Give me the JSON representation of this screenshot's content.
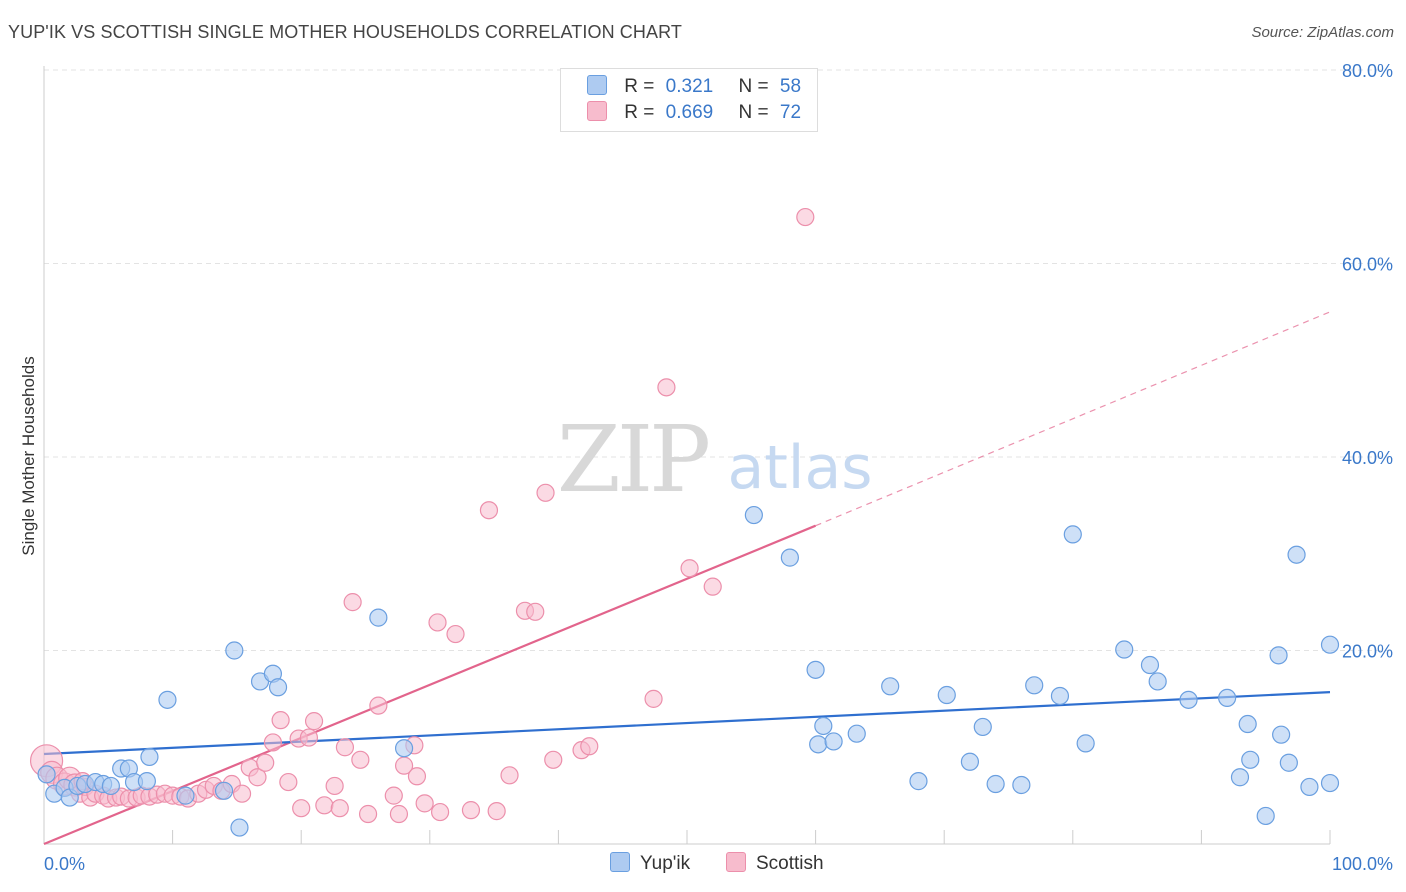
{
  "title": "YUP'IK VS SCOTTISH SINGLE MOTHER HOUSEHOLDS CORRELATION CHART",
  "source": "Source: ZipAtlas.com",
  "watermark": {
    "zip": "ZIP",
    "atlas": "atlas"
  },
  "legend": {
    "r_label": "R =",
    "n_label": "N =",
    "rows": [
      {
        "r": "0.321",
        "n": "58"
      },
      {
        "r": "0.669",
        "n": "72"
      }
    ]
  },
  "colors": {
    "blue_fill": "#aecbf1",
    "blue_stroke": "#6a9fe0",
    "blue_line": "#2f6fcf",
    "pink_fill": "#f7bccd",
    "pink_stroke": "#ec8fab",
    "pink_line": "#e2648c",
    "tick_label": "#3a78c9"
  },
  "chart_data": {
    "type": "scatter",
    "title": "YUP'IK VS SCOTTISH SINGLE MOTHER HOUSEHOLDS CORRELATION CHART",
    "xlabel": "",
    "ylabel": "Single Mother Households",
    "xlim": [
      0,
      100
    ],
    "ylim": [
      0,
      80
    ],
    "x_tick_labels": [
      "0.0%",
      "100.0%"
    ],
    "y_ticks": [
      20,
      40,
      60,
      80
    ],
    "y_tick_labels": [
      "20.0%",
      "40.0%",
      "60.0%",
      "80.0%"
    ],
    "grid": true,
    "legend_position": "top-center",
    "series": [
      {
        "name": "Yup'ik",
        "color": "#6a9fe0",
        "r": 0.321,
        "n": 58,
        "trend": {
          "x": [
            0,
            100
          ],
          "y": [
            9.3,
            15.7
          ]
        },
        "points": [
          [
            0.2,
            7.2
          ],
          [
            0.8,
            5.2
          ],
          [
            1.6,
            5.8
          ],
          [
            2.0,
            4.8
          ],
          [
            2.6,
            6.0
          ],
          [
            3.2,
            6.2
          ],
          [
            4.0,
            6.4
          ],
          [
            4.6,
            6.2
          ],
          [
            5.2,
            6.0
          ],
          [
            6.0,
            7.8
          ],
          [
            6.6,
            7.8
          ],
          [
            7.0,
            6.4
          ],
          [
            8.0,
            6.5
          ],
          [
            8.2,
            9.0
          ],
          [
            9.6,
            14.9
          ],
          [
            11.0,
            5.0
          ],
          [
            14.0,
            5.5
          ],
          [
            14.8,
            20.0
          ],
          [
            15.2,
            1.7
          ],
          [
            16.8,
            16.8
          ],
          [
            17.8,
            17.6
          ],
          [
            18.2,
            16.2
          ],
          [
            26.0,
            23.4
          ],
          [
            28.0,
            9.9
          ],
          [
            55.2,
            34.0
          ],
          [
            58.0,
            29.6
          ],
          [
            60.0,
            18.0
          ],
          [
            60.2,
            10.3
          ],
          [
            60.6,
            12.2
          ],
          [
            61.4,
            10.6
          ],
          [
            63.2,
            11.4
          ],
          [
            65.8,
            16.3
          ],
          [
            68.0,
            6.5
          ],
          [
            70.2,
            15.4
          ],
          [
            72.0,
            8.5
          ],
          [
            73.0,
            12.1
          ],
          [
            74.0,
            6.2
          ],
          [
            76.0,
            6.1
          ],
          [
            77.0,
            16.4
          ],
          [
            79.0,
            15.3
          ],
          [
            80.0,
            32.0
          ],
          [
            81.0,
            10.4
          ],
          [
            84.0,
            20.1
          ],
          [
            86.0,
            18.5
          ],
          [
            86.6,
            16.8
          ],
          [
            89.0,
            14.9
          ],
          [
            92.0,
            15.1
          ],
          [
            93.0,
            6.9
          ],
          [
            93.6,
            12.4
          ],
          [
            93.8,
            8.7
          ],
          [
            95.0,
            2.9
          ],
          [
            96.0,
            19.5
          ],
          [
            96.2,
            11.3
          ],
          [
            96.8,
            8.4
          ],
          [
            97.4,
            29.9
          ],
          [
            98.4,
            5.9
          ],
          [
            100.0,
            20.6
          ],
          [
            100.0,
            6.3
          ]
        ]
      },
      {
        "name": "Scottish",
        "color": "#ec8fab",
        "r": 0.669,
        "n": 72,
        "trend": {
          "x": [
            0,
            60
          ],
          "y": [
            0,
            32.9
          ]
        },
        "trend_dashed": {
          "x": [
            60,
            100
          ],
          "y": [
            32.9,
            55.0
          ]
        },
        "points": [
          [
            0.2,
            8.6
          ],
          [
            0.6,
            7.4
          ],
          [
            1.0,
            6.8
          ],
          [
            1.6,
            6.2
          ],
          [
            2.0,
            6.8
          ],
          [
            2.4,
            6.1
          ],
          [
            2.8,
            5.2
          ],
          [
            3.2,
            5.9
          ],
          [
            3.6,
            4.8
          ],
          [
            4.0,
            5.2
          ],
          [
            4.6,
            5.0
          ],
          [
            5.0,
            4.7
          ],
          [
            5.6,
            4.8
          ],
          [
            6.0,
            4.9
          ],
          [
            6.6,
            4.7
          ],
          [
            7.2,
            4.8
          ],
          [
            7.6,
            5.0
          ],
          [
            8.2,
            4.9
          ],
          [
            8.8,
            5.1
          ],
          [
            9.4,
            5.2
          ],
          [
            10.0,
            5.0
          ],
          [
            10.6,
            4.9
          ],
          [
            11.2,
            4.7
          ],
          [
            12.0,
            5.2
          ],
          [
            12.6,
            5.6
          ],
          [
            13.2,
            6.0
          ],
          [
            13.8,
            5.5
          ],
          [
            14.6,
            6.2
          ],
          [
            15.4,
            5.2
          ],
          [
            16.0,
            7.9
          ],
          [
            16.6,
            6.9
          ],
          [
            17.2,
            8.4
          ],
          [
            17.8,
            10.5
          ],
          [
            18.4,
            12.8
          ],
          [
            19.0,
            6.4
          ],
          [
            19.8,
            10.9
          ],
          [
            20.0,
            3.7
          ],
          [
            20.6,
            11.0
          ],
          [
            21.0,
            12.7
          ],
          [
            21.8,
            4.0
          ],
          [
            22.6,
            6.0
          ],
          [
            23.0,
            3.7
          ],
          [
            23.4,
            10.0
          ],
          [
            24.0,
            25.0
          ],
          [
            24.6,
            8.7
          ],
          [
            25.2,
            3.1
          ],
          [
            26.0,
            14.3
          ],
          [
            27.2,
            5.0
          ],
          [
            27.6,
            3.1
          ],
          [
            28.0,
            8.1
          ],
          [
            28.8,
            10.2
          ],
          [
            29.0,
            7.0
          ],
          [
            29.6,
            4.2
          ],
          [
            30.6,
            22.9
          ],
          [
            30.8,
            3.3
          ],
          [
            32.0,
            21.7
          ],
          [
            33.2,
            3.5
          ],
          [
            34.6,
            34.5
          ],
          [
            35.2,
            3.4
          ],
          [
            36.2,
            7.1
          ],
          [
            37.4,
            24.1
          ],
          [
            38.2,
            24.0
          ],
          [
            39.0,
            36.3
          ],
          [
            39.6,
            8.7
          ],
          [
            41.8,
            9.7
          ],
          [
            42.4,
            10.1
          ],
          [
            47.4,
            15.0
          ],
          [
            48.4,
            47.2
          ],
          [
            50.2,
            28.5
          ],
          [
            52.0,
            26.6
          ],
          [
            59.2,
            64.8
          ],
          [
            3.0,
            6.5
          ]
        ]
      }
    ]
  },
  "bottom_legend": [
    {
      "name": "Yup'ik"
    },
    {
      "name": "Scottish"
    }
  ]
}
